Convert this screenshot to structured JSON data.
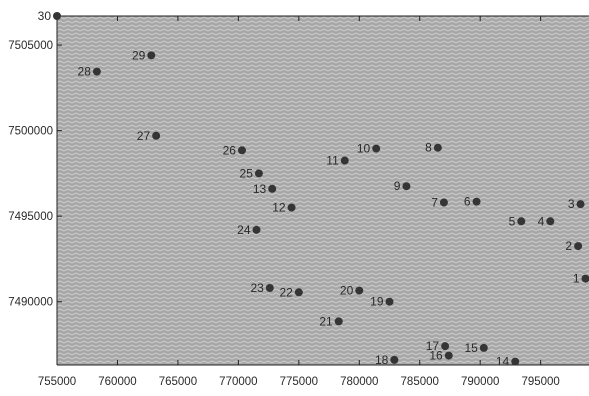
{
  "chart_data": {
    "type": "scatter",
    "title": "",
    "xlabel": "",
    "ylabel": "",
    "xlim": [
      755000,
      799000
    ],
    "ylim": [
      7486300,
      7506700
    ],
    "x_ticks": [
      755000,
      760000,
      765000,
      770000,
      775000,
      780000,
      785000,
      790000,
      795000
    ],
    "x_tick_labels": [
      "755000",
      "760000",
      "765000",
      "770000",
      "775000",
      "780000",
      "785000",
      "790000",
      "795000"
    ],
    "y_ticks": [
      7490000,
      7495000,
      7500000,
      7505000
    ],
    "y_tick_labels": [
      "7490000",
      "7495000",
      "7500000",
      "7505000"
    ],
    "grid": false,
    "legend": "none",
    "colors": {
      "plot_background": "#a7a7a7",
      "pattern_line": "#d2d2d2",
      "marker": "#353535",
      "axis": "#222222"
    },
    "points": [
      {
        "label": "1",
        "x": 799100,
        "y": 7491350
      },
      {
        "label": "2",
        "x": 798100,
        "y": 7493250
      },
      {
        "label": "3",
        "x": 798300,
        "y": 7495700
      },
      {
        "label": "4",
        "x": 795800,
        "y": 7494700
      },
      {
        "label": "5",
        "x": 793400,
        "y": 7494700
      },
      {
        "label": "6",
        "x": 789700,
        "y": 7495850
      },
      {
        "label": "7",
        "x": 787000,
        "y": 7495800
      },
      {
        "label": "8",
        "x": 786500,
        "y": 7499000
      },
      {
        "label": "9",
        "x": 783900,
        "y": 7496750
      },
      {
        "label": "10",
        "x": 781400,
        "y": 7498950
      },
      {
        "label": "11",
        "x": 778800,
        "y": 7498250
      },
      {
        "label": "12",
        "x": 774400,
        "y": 7495500
      },
      {
        "label": "13",
        "x": 772800,
        "y": 7496600
      },
      {
        "label": "14",
        "x": 792900,
        "y": 7486500
      },
      {
        "label": "15",
        "x": 790300,
        "y": 7487300
      },
      {
        "label": "16",
        "x": 787400,
        "y": 7486850
      },
      {
        "label": "17",
        "x": 787100,
        "y": 7487400
      },
      {
        "label": "18",
        "x": 782900,
        "y": 7486600
      },
      {
        "label": "19",
        "x": 782500,
        "y": 7490000
      },
      {
        "label": "20",
        "x": 780000,
        "y": 7490650
      },
      {
        "label": "21",
        "x": 778300,
        "y": 7488850
      },
      {
        "label": "22",
        "x": 775000,
        "y": 7490550
      },
      {
        "label": "23",
        "x": 772600,
        "y": 7490800
      },
      {
        "label": "24",
        "x": 771500,
        "y": 7494200
      },
      {
        "label": "25",
        "x": 771700,
        "y": 7497500
      },
      {
        "label": "26",
        "x": 770300,
        "y": 7498850
      },
      {
        "label": "27",
        "x": 763200,
        "y": 7499700
      },
      {
        "label": "28",
        "x": 758300,
        "y": 7503450
      },
      {
        "label": "29",
        "x": 762800,
        "y": 7504400
      },
      {
        "label": "30",
        "x": 755000,
        "y": 7506700
      }
    ]
  }
}
